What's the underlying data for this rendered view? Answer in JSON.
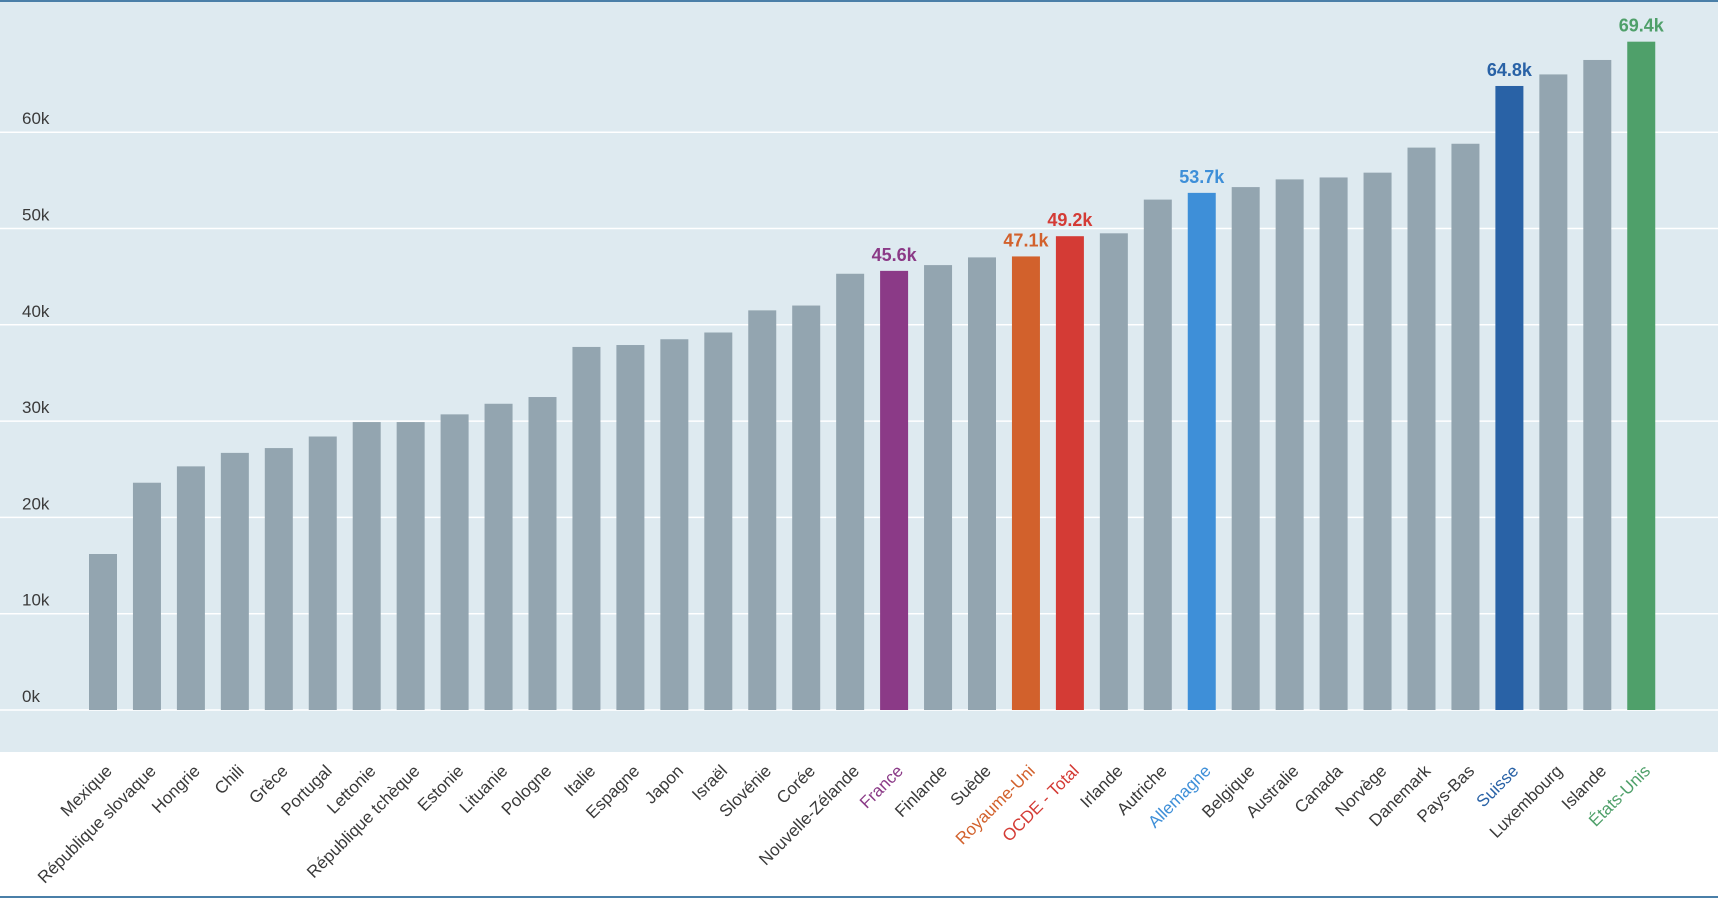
{
  "chart_data": {
    "type": "bar",
    "ylim": [
      0,
      70000
    ],
    "y_ticks": [
      {
        "value": 0,
        "label": "0k"
      },
      {
        "value": 10000,
        "label": "10k"
      },
      {
        "value": 20000,
        "label": "20k"
      },
      {
        "value": 30000,
        "label": "30k"
      },
      {
        "value": 40000,
        "label": "40k"
      },
      {
        "value": 50000,
        "label": "50k"
      },
      {
        "value": 60000,
        "label": "60k"
      }
    ],
    "grid": true,
    "default_bar_color": "#93a5b0",
    "default_label_color": "#3a3a3a",
    "bars": [
      {
        "category": "Mexique",
        "value": 16200
      },
      {
        "category": "République slovaque",
        "value": 23600
      },
      {
        "category": "Hongrie",
        "value": 25300
      },
      {
        "category": "Chili",
        "value": 26700
      },
      {
        "category": "Grèce",
        "value": 27200
      },
      {
        "category": "Portugal",
        "value": 28400
      },
      {
        "category": "Lettonie",
        "value": 29900
      },
      {
        "category": "République tchèque",
        "value": 29900
      },
      {
        "category": "Estonie",
        "value": 30700
      },
      {
        "category": "Lituanie",
        "value": 31800
      },
      {
        "category": "Pologne",
        "value": 32500
      },
      {
        "category": "Italie",
        "value": 37700
      },
      {
        "category": "Espagne",
        "value": 37900
      },
      {
        "category": "Japon",
        "value": 38500
      },
      {
        "category": "Israël",
        "value": 39200
      },
      {
        "category": "Slovénie",
        "value": 41500
      },
      {
        "category": "Corée",
        "value": 42000
      },
      {
        "category": "Nouvelle-Zélande",
        "value": 45300
      },
      {
        "category": "France",
        "value": 45600,
        "label": "45.6k",
        "color": "#8b3a87"
      },
      {
        "category": "Finlande",
        "value": 46200
      },
      {
        "category": "Suède",
        "value": 47000
      },
      {
        "category": "Royaume-Uni",
        "value": 47100,
        "label": "47.1k",
        "color": "#d2612c"
      },
      {
        "category": "OCDE - Total",
        "value": 49200,
        "label": "49.2k",
        "color": "#d43b35"
      },
      {
        "category": "Irlande",
        "value": 49500
      },
      {
        "category": "Autriche",
        "value": 53000
      },
      {
        "category": "Allemagne",
        "value": 53700,
        "label": "53.7k",
        "color": "#3e8fd8"
      },
      {
        "category": "Belgique",
        "value": 54300
      },
      {
        "category": "Australie",
        "value": 55100
      },
      {
        "category": "Canada",
        "value": 55300
      },
      {
        "category": "Norvège",
        "value": 55800
      },
      {
        "category": "Danemark",
        "value": 58400
      },
      {
        "category": "Pays-Bas",
        "value": 58800
      },
      {
        "category": "Suisse",
        "value": 64800,
        "label": "64.8k",
        "color": "#2962a6"
      },
      {
        "category": "Luxembourg",
        "value": 66000
      },
      {
        "category": "Islande",
        "value": 67500
      },
      {
        "category": "États-Unis",
        "value": 69400,
        "label": "69.4k",
        "color": "#4fa06a"
      }
    ]
  }
}
